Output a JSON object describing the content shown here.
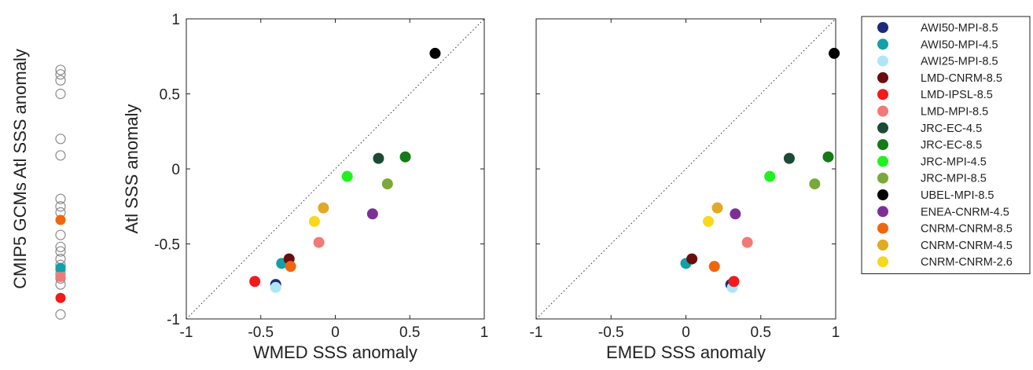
{
  "chart_data": [
    {
      "type": "scatter",
      "role": "strip",
      "ylabel": "CMIP5 GCMs Atl SSS anomaly",
      "ylim": [
        -1,
        1
      ],
      "points": [
        {
          "y": 0.66,
          "filled": false
        },
        {
          "y": 0.63,
          "filled": false
        },
        {
          "y": 0.59,
          "filled": false
        },
        {
          "y": 0.5,
          "filled": false
        },
        {
          "y": 0.2,
          "filled": false
        },
        {
          "y": 0.09,
          "filled": false
        },
        {
          "y": -0.2,
          "filled": false
        },
        {
          "y": -0.25,
          "filled": false
        },
        {
          "y": -0.29,
          "filled": false
        },
        {
          "y": -0.44,
          "filled": false
        },
        {
          "y": -0.52,
          "filled": false
        },
        {
          "y": -0.55,
          "filled": false
        },
        {
          "y": -0.6,
          "filled": false
        },
        {
          "y": -0.64,
          "filled": false
        },
        {
          "y": -0.67,
          "filled": false
        },
        {
          "y": -0.7,
          "filled": false
        },
        {
          "y": -0.73,
          "filled": false
        },
        {
          "y": -0.77,
          "filled": false
        },
        {
          "y": -0.97,
          "filled": false
        },
        {
          "y": -0.34,
          "filled": true,
          "series": "CNRM-CNRM-8.5"
        },
        {
          "y": -0.66,
          "filled": true,
          "series": "AWI50-MPI-4.5"
        },
        {
          "y": -0.72,
          "filled": true,
          "series": "LMD-MPI-8.5"
        },
        {
          "y": -0.86,
          "filled": true,
          "series": "LMD-IPSL-8.5"
        }
      ]
    },
    {
      "type": "scatter",
      "xlabel": "WMED SSS anomaly",
      "ylabel": "Atl SSS anomaly",
      "xlim": [
        -1,
        1
      ],
      "ylim": [
        -1,
        1
      ],
      "xticks": [
        "-1",
        "-0.5",
        "0",
        "0.5",
        "1"
      ],
      "yticks": [
        "1",
        "0.5",
        "0",
        "-0.5",
        "-1"
      ],
      "diagonal": true,
      "points": [
        {
          "series": "AWI50-MPI-8.5",
          "x": -0.4,
          "y": -0.77
        },
        {
          "series": "AWI50-MPI-4.5",
          "x": -0.36,
          "y": -0.63
        },
        {
          "series": "AWI25-MPI-8.5",
          "x": -0.4,
          "y": -0.79
        },
        {
          "series": "LMD-CNRM-8.5",
          "x": -0.31,
          "y": -0.6
        },
        {
          "series": "LMD-IPSL-8.5",
          "x": -0.54,
          "y": -0.75
        },
        {
          "series": "LMD-MPI-8.5",
          "x": -0.11,
          "y": -0.49
        },
        {
          "series": "JRC-EC-4.5",
          "x": 0.29,
          "y": 0.07
        },
        {
          "series": "JRC-EC-8.5",
          "x": 0.47,
          "y": 0.08
        },
        {
          "series": "JRC-MPI-4.5",
          "x": 0.08,
          "y": -0.05
        },
        {
          "series": "JRC-MPI-8.5",
          "x": 0.35,
          "y": -0.1
        },
        {
          "series": "UBEL-MPI-8.5",
          "x": 0.67,
          "y": 0.77
        },
        {
          "series": "ENEA-CNRM-4.5",
          "x": 0.25,
          "y": -0.3
        },
        {
          "series": "CNRM-CNRM-8.5",
          "x": -0.3,
          "y": -0.65
        },
        {
          "series": "CNRM-CNRM-4.5",
          "x": -0.08,
          "y": -0.26
        },
        {
          "series": "CNRM-CNRM-2.6",
          "x": -0.14,
          "y": -0.35
        }
      ]
    },
    {
      "type": "scatter",
      "xlabel": "EMED SSS anomaly",
      "xlim": [
        -1,
        1
      ],
      "ylim": [
        -1,
        1
      ],
      "xticks": [
        "-1",
        "-0.5",
        "0",
        "0.5",
        "1"
      ],
      "diagonal": true,
      "points": [
        {
          "series": "AWI50-MPI-8.5",
          "x": 0.3,
          "y": -0.77
        },
        {
          "series": "AWI50-MPI-4.5",
          "x": 0.0,
          "y": -0.63
        },
        {
          "series": "AWI25-MPI-8.5",
          "x": 0.31,
          "y": -0.79
        },
        {
          "series": "LMD-CNRM-8.5",
          "x": 0.04,
          "y": -0.6
        },
        {
          "series": "LMD-IPSL-8.5",
          "x": 0.32,
          "y": -0.75
        },
        {
          "series": "LMD-MPI-8.5",
          "x": 0.41,
          "y": -0.49
        },
        {
          "series": "JRC-EC-4.5",
          "x": 0.69,
          "y": 0.07
        },
        {
          "series": "JRC-EC-8.5",
          "x": 0.95,
          "y": 0.08
        },
        {
          "series": "JRC-MPI-4.5",
          "x": 0.56,
          "y": -0.05
        },
        {
          "series": "JRC-MPI-8.5",
          "x": 0.86,
          "y": -0.1
        },
        {
          "series": "UBEL-MPI-8.5",
          "x": 0.99,
          "y": 0.77
        },
        {
          "series": "ENEA-CNRM-4.5",
          "x": 0.33,
          "y": -0.3
        },
        {
          "series": "CNRM-CNRM-8.5",
          "x": 0.19,
          "y": -0.65
        },
        {
          "series": "CNRM-CNRM-4.5",
          "x": 0.21,
          "y": -0.26
        },
        {
          "series": "CNRM-CNRM-2.6",
          "x": 0.15,
          "y": -0.35
        }
      ]
    }
  ],
  "legend": {
    "placement": "right",
    "entries": [
      {
        "name": "AWI50-MPI-8.5",
        "color": "#1b2a7a"
      },
      {
        "name": "AWI50-MPI-4.5",
        "color": "#13a0a8"
      },
      {
        "name": "AWI25-MPI-8.5",
        "color": "#aee6f8"
      },
      {
        "name": "LMD-CNRM-8.5",
        "color": "#6b0d0d"
      },
      {
        "name": "LMD-IPSL-8.5",
        "color": "#f21a1a"
      },
      {
        "name": "LMD-MPI-8.5",
        "color": "#f07a78"
      },
      {
        "name": "JRC-EC-4.5",
        "color": "#1c4a35"
      },
      {
        "name": "JRC-EC-8.5",
        "color": "#157a17"
      },
      {
        "name": "JRC-MPI-4.5",
        "color": "#1ff21f"
      },
      {
        "name": "JRC-MPI-8.5",
        "color": "#7aa83a"
      },
      {
        "name": "UBEL-MPI-8.5",
        "color": "#000000"
      },
      {
        "name": "ENEA-CNRM-4.5",
        "color": "#7d2f96"
      },
      {
        "name": "CNRM-CNRM-8.5",
        "color": "#f0660f"
      },
      {
        "name": "CNRM-CNRM-4.5",
        "color": "#e2aa22"
      },
      {
        "name": "CNRM-CNRM-2.6",
        "color": "#f8d81c"
      }
    ]
  }
}
